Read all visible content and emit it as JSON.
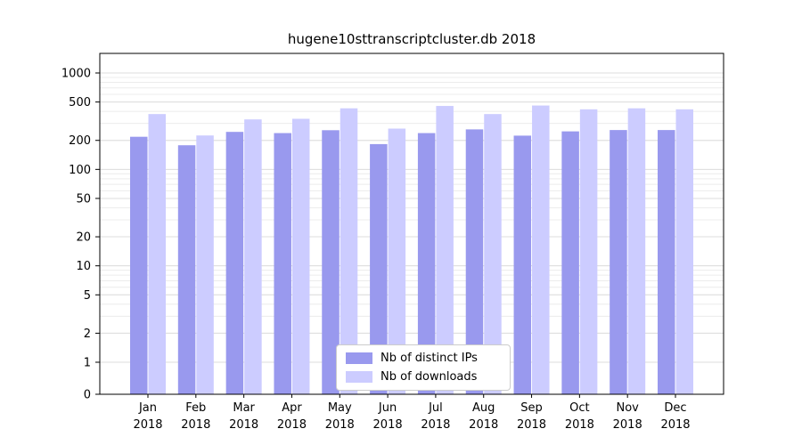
{
  "chart_data": {
    "type": "bar",
    "title": "hugene10sttranscriptcluster.db 2018",
    "categories": [
      "Jan",
      "Feb",
      "Mar",
      "Apr",
      "May",
      "Jun",
      "Jul",
      "Aug",
      "Sep",
      "Oct",
      "Nov",
      "Dec"
    ],
    "xtick_year": "2018",
    "series": [
      {
        "name": "Nb of distinct IPs",
        "color": "#9999ee",
        "values": [
          218,
          178,
          245,
          238,
          255,
          183,
          238,
          260,
          224,
          248,
          256,
          256
        ]
      },
      {
        "name": "Nb of downloads",
        "color": "#ccccff",
        "values": [
          375,
          225,
          330,
          335,
          430,
          265,
          455,
          375,
          460,
          420,
          430,
          420
        ]
      }
    ],
    "yticks": [
      0,
      1,
      2,
      5,
      10,
      20,
      50,
      100,
      200,
      500,
      1000
    ],
    "yscale": "log with 1-2-5 ticks, linear segment between 0 and 1",
    "ylim": [
      0,
      1300
    ],
    "xlabel": "",
    "ylabel": "",
    "grid": "horizontal minor gridlines, light gray",
    "legend_position": "inside bottom-center"
  },
  "colors": {
    "grid_minor": "#ececec",
    "grid_major": "#dddddd",
    "axis": "#000000",
    "background": "#ffffff"
  }
}
